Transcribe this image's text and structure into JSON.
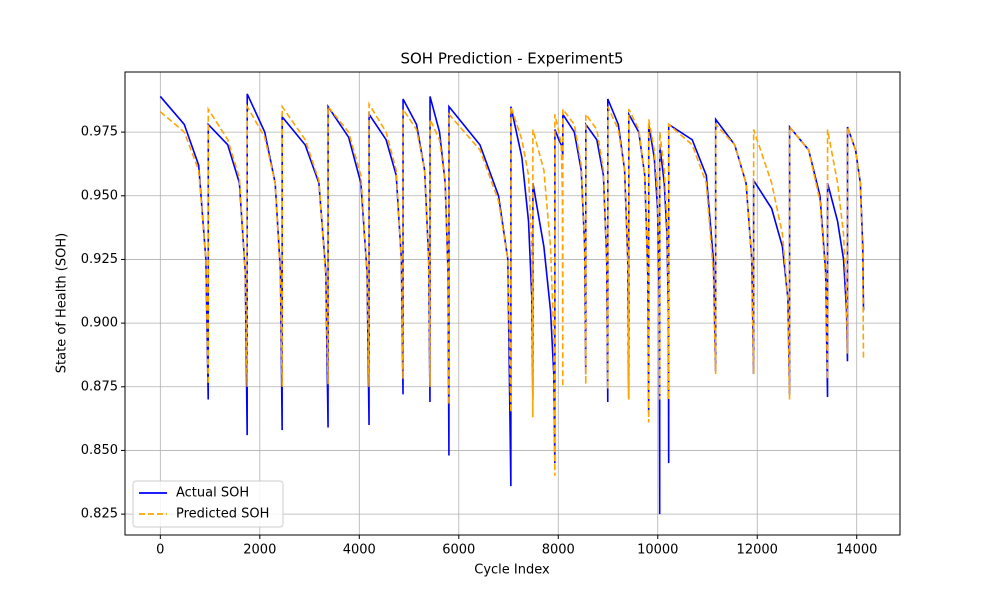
{
  "chart_data": {
    "type": "line",
    "title": "SOH Prediction - Experiment5",
    "x_label": "Cycle Index",
    "y_label": "State of Health (SOH)",
    "x": [
      0,
      482,
      771,
      916,
      963,
      964,
      1356,
      1590,
      1708,
      1746,
      1747,
      2099,
      2309,
      2415,
      2449,
      2450,
      2912,
      3188,
      3327,
      3372,
      3373,
      3785,
      4032,
      4156,
      4196,
      4197,
      4539,
      4743,
      4846,
      4879,
      4880,
      5151,
      5314,
      5395,
      5421,
      5422,
      5613,
      5727,
      5784,
      5802,
      5803,
      6426,
      6799,
      6986,
      7047,
      7048,
      7269,
      7402,
      7468,
      7489,
      7490,
      7711,
      7844,
      7910,
      7931,
      7932,
      8012,
      8060,
      8084,
      8091,
      8092,
      8323,
      8462,
      8531,
      8553,
      8554,
      8775,
      8908,
      8974,
      8995,
      8996,
      9207,
      9334,
      9397,
      9417,
      9418,
      9619,
      9739,
      9799,
      9818,
      9819,
      9930,
      9996,
      10029,
      10039,
      10040,
      10131,
      10185,
      10212,
      10220,
      10221,
      10693,
      10976,
      11118,
      11164,
      11165,
      11547,
      11775,
      11890,
      11927,
      11928,
      12290,
      12506,
      12615,
      12650,
      12651,
      13033,
      13261,
      13376,
      13413,
      13414,
      13615,
      13735,
      13795,
      13814,
      13815,
      13976,
      14073,
      14121,
      14136
    ],
    "series": [
      {
        "name": "Actual SOH",
        "color": "#0000ff",
        "dash": false,
        "values": [
          0.989,
          0.978,
          0.962,
          0.925,
          0.87,
          0.978,
          0.97,
          0.955,
          0.92,
          0.856,
          0.99,
          0.975,
          0.955,
          0.92,
          0.858,
          0.981,
          0.97,
          0.955,
          0.92,
          0.859,
          0.985,
          0.973,
          0.955,
          0.92,
          0.86,
          0.982,
          0.972,
          0.958,
          0.925,
          0.872,
          0.988,
          0.978,
          0.96,
          0.925,
          0.869,
          0.989,
          0.975,
          0.955,
          0.92,
          0.848,
          0.985,
          0.97,
          0.95,
          0.925,
          0.836,
          0.985,
          0.965,
          0.94,
          0.91,
          0.87,
          0.955,
          0.93,
          0.905,
          0.88,
          0.845,
          0.976,
          0.972,
          0.97,
          0.967,
          0.966,
          0.982,
          0.975,
          0.96,
          0.93,
          0.88,
          0.978,
          0.972,
          0.958,
          0.925,
          0.869,
          0.988,
          0.978,
          0.96,
          0.925,
          0.87,
          0.982,
          0.975,
          0.958,
          0.92,
          0.865,
          0.978,
          0.965,
          0.945,
          0.91,
          0.825,
          0.97,
          0.955,
          0.935,
          0.905,
          0.845,
          0.978,
          0.972,
          0.958,
          0.925,
          0.881,
          0.98,
          0.97,
          0.955,
          0.925,
          0.88,
          0.956,
          0.945,
          0.93,
          0.91,
          0.872,
          0.977,
          0.968,
          0.95,
          0.92,
          0.871,
          0.955,
          0.94,
          0.925,
          0.905,
          0.885,
          0.977,
          0.968,
          0.955,
          0.93,
          0.905
        ]
      },
      {
        "name": "Predicted SOH",
        "color": "#ffa500",
        "dash": true,
        "values": [
          0.983,
          0.975,
          0.96,
          0.925,
          0.876,
          0.984,
          0.972,
          0.957,
          0.92,
          0.875,
          0.985,
          0.973,
          0.955,
          0.918,
          0.875,
          0.985,
          0.972,
          0.956,
          0.918,
          0.876,
          0.985,
          0.975,
          0.958,
          0.92,
          0.875,
          0.986,
          0.975,
          0.96,
          0.925,
          0.878,
          0.984,
          0.976,
          0.96,
          0.925,
          0.875,
          0.98,
          0.972,
          0.955,
          0.918,
          0.868,
          0.982,
          0.968,
          0.948,
          0.925,
          0.865,
          0.985,
          0.972,
          0.958,
          0.93,
          0.863,
          0.976,
          0.96,
          0.93,
          0.895,
          0.84,
          0.982,
          0.975,
          0.97,
          0.95,
          0.875,
          0.984,
          0.978,
          0.962,
          0.93,
          0.876,
          0.982,
          0.976,
          0.96,
          0.925,
          0.874,
          0.985,
          0.976,
          0.96,
          0.925,
          0.87,
          0.984,
          0.976,
          0.958,
          0.918,
          0.861,
          0.98,
          0.968,
          0.95,
          0.915,
          0.87,
          0.975,
          0.96,
          0.94,
          0.91,
          0.87,
          0.978,
          0.97,
          0.955,
          0.92,
          0.88,
          0.978,
          0.97,
          0.955,
          0.925,
          0.88,
          0.976,
          0.955,
          0.935,
          0.91,
          0.87,
          0.977,
          0.968,
          0.948,
          0.918,
          0.878,
          0.976,
          0.955,
          0.935,
          0.91,
          0.888,
          0.977,
          0.968,
          0.955,
          0.925,
          0.886
        ]
      }
    ],
    "xlim": [
      -710,
      14870
    ],
    "ylim": [
      0.8168,
      0.9986
    ],
    "xticks": [
      0,
      2000,
      4000,
      6000,
      8000,
      10000,
      12000,
      14000
    ],
    "yticks": [
      0.825,
      {
        "value": 0.85,
        "label": "0.850"
      },
      0.875,
      {
        "value": 0.9,
        "label": "0.900"
      },
      0.925,
      {
        "value": 0.95,
        "label": "0.950"
      },
      0.975
    ],
    "grid": true,
    "legend": "lower-left"
  }
}
